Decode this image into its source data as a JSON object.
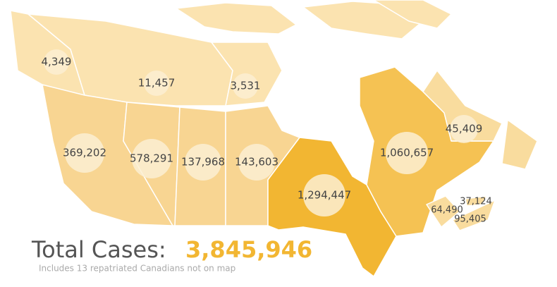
{
  "map": {
    "region_labels": [
      "4,349",
      "11,457",
      "3,531",
      "369,202",
      "578,291",
      "137,968",
      "143,603",
      "1,294,447",
      "1,060,657",
      "45,409",
      "37,124",
      "64,490",
      "95,405"
    ],
    "total_label": "Total Cases:",
    "total": "3,845,946",
    "note": "Includes 13 repatriated Canadians not on map"
  }
}
